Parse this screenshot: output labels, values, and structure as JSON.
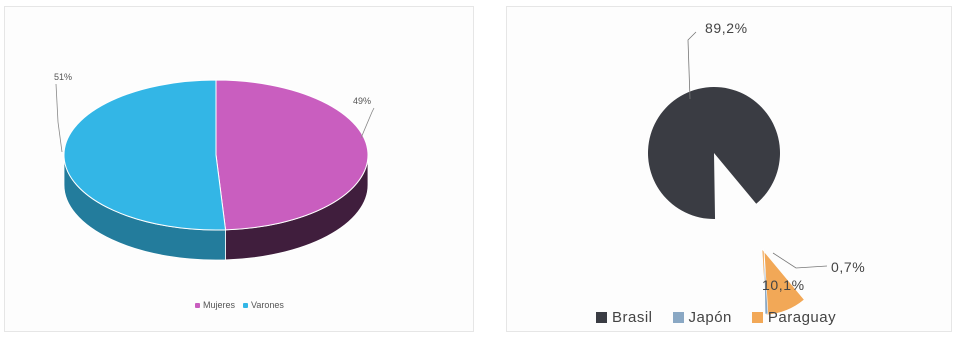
{
  "chart_data": [
    {
      "type": "pie",
      "style": "3d",
      "categories": [
        "Mujeres",
        "Varones"
      ],
      "values": [
        49,
        51
      ],
      "data_labels": [
        "49%",
        "51%"
      ],
      "colors": [
        "#c95ebf",
        "#33b6e6"
      ],
      "legend_position": "bottom"
    },
    {
      "type": "pie",
      "style": "exploded",
      "categories": [
        "Brasil",
        "Japón",
        "Paraguay"
      ],
      "values": [
        89.2,
        0.7,
        10.1
      ],
      "data_labels": [
        "89,2%",
        "0,7%",
        "10,1%"
      ],
      "colors": [
        "#3a3c43",
        "#8aa8c4",
        "#f2a857"
      ],
      "legend_position": "bottom"
    }
  ],
  "legends": {
    "left": [
      {
        "label": "Mujeres",
        "color": "#c95ebf"
      },
      {
        "label": "Varones",
        "color": "#33b6e6"
      }
    ],
    "right": [
      {
        "label": "Brasil",
        "color": "#3a3c43"
      },
      {
        "label": "Japón",
        "color": "#8aa8c4"
      },
      {
        "label": "Paraguay",
        "color": "#f2a857"
      }
    ]
  }
}
